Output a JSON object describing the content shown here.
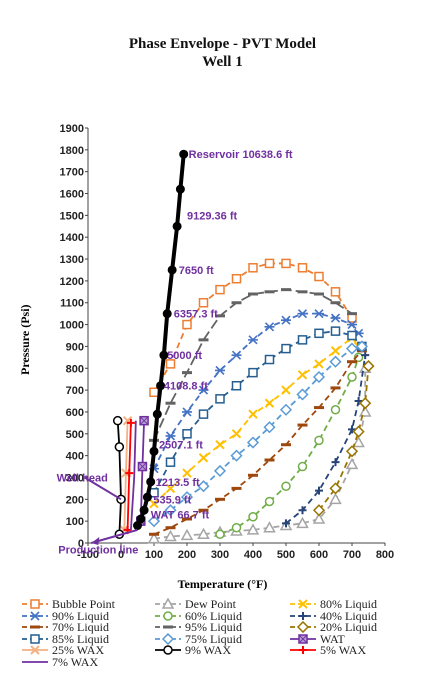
{
  "chart_data": {
    "type": "line",
    "title": "Phase Envelope - PVT Model",
    "subtitle": "Well 1",
    "xlabel": "Temperature (°F)",
    "ylabel": "Pressure (Psi)",
    "xlim": [
      -100,
      800
    ],
    "ylim": [
      0,
      1900
    ],
    "x_ticks": [
      "-100",
      "0",
      "100",
      "200",
      "300",
      "400",
      "500",
      "600",
      "700",
      "800"
    ],
    "y_ticks": [
      "0",
      "100",
      "200",
      "300",
      "400",
      "500",
      "600",
      "700",
      "800",
      "900",
      "1000",
      "1100",
      "1200",
      "1300",
      "1400",
      "1500",
      "1600",
      "1700",
      "1800",
      "1900"
    ],
    "grid": false,
    "legend_position": "bottom",
    "series": [
      {
        "name": "Bubble Point",
        "color": "#ED7D31",
        "marker": "square",
        "dash": "6,4",
        "points": [
          [
            100,
            690
          ],
          [
            150,
            820
          ],
          [
            200,
            1000
          ],
          [
            250,
            1100
          ],
          [
            300,
            1160
          ],
          [
            350,
            1210
          ],
          [
            400,
            1260
          ],
          [
            450,
            1280
          ],
          [
            500,
            1280
          ],
          [
            550,
            1260
          ],
          [
            600,
            1220
          ],
          [
            650,
            1150
          ],
          [
            700,
            1030
          ]
        ]
      },
      {
        "name": "Dew Point",
        "color": "#A5A5A5",
        "marker": "triangle",
        "dash": "6,4",
        "points": [
          [
            100,
            20
          ],
          [
            150,
            30
          ],
          [
            200,
            35
          ],
          [
            250,
            40
          ],
          [
            300,
            50
          ],
          [
            350,
            55
          ],
          [
            400,
            60
          ],
          [
            450,
            70
          ],
          [
            500,
            80
          ],
          [
            550,
            90
          ],
          [
            600,
            110
          ],
          [
            650,
            200
          ],
          [
            700,
            360
          ],
          [
            720,
            460
          ],
          [
            740,
            600
          ],
          [
            740,
            800
          ]
        ]
      },
      {
        "name": "80% Liquid",
        "color": "#FFC000",
        "marker": "x",
        "dash": "6,4",
        "points": [
          [
            100,
            180
          ],
          [
            150,
            250
          ],
          [
            200,
            320
          ],
          [
            250,
            390
          ],
          [
            300,
            450
          ],
          [
            350,
            500
          ],
          [
            400,
            590
          ],
          [
            450,
            640
          ],
          [
            500,
            700
          ],
          [
            550,
            770
          ],
          [
            600,
            820
          ],
          [
            650,
            880
          ],
          [
            700,
            940
          ],
          [
            720,
            900
          ]
        ]
      },
      {
        "name": "90% Liquid",
        "color": "#4472C4",
        "marker": "star",
        "dash": "6,4",
        "points": [
          [
            100,
            340
          ],
          [
            150,
            490
          ],
          [
            200,
            600
          ],
          [
            250,
            700
          ],
          [
            300,
            790
          ],
          [
            350,
            860
          ],
          [
            400,
            930
          ],
          [
            450,
            990
          ],
          [
            500,
            1020
          ],
          [
            550,
            1050
          ],
          [
            600,
            1050
          ],
          [
            650,
            1030
          ],
          [
            700,
            1000
          ],
          [
            720,
            960
          ]
        ]
      },
      {
        "name": "60% Liquid",
        "color": "#70AD47",
        "marker": "circle",
        "dash": "6,4",
        "points": [
          [
            300,
            40
          ],
          [
            350,
            70
          ],
          [
            400,
            120
          ],
          [
            450,
            190
          ],
          [
            500,
            260
          ],
          [
            550,
            350
          ],
          [
            600,
            470
          ],
          [
            650,
            610
          ],
          [
            700,
            760
          ],
          [
            720,
            850
          ]
        ]
      },
      {
        "name": "40% Liquid",
        "color": "#264478",
        "marker": "plus",
        "dash": "6,4",
        "points": [
          [
            500,
            90
          ],
          [
            550,
            150
          ],
          [
            600,
            240
          ],
          [
            650,
            370
          ],
          [
            700,
            520
          ],
          [
            720,
            650
          ],
          [
            740,
            860
          ]
        ]
      },
      {
        "name": "70% Liquid",
        "color": "#9E480E",
        "marker": "dash",
        "dash": "6,4",
        "points": [
          [
            100,
            40
          ],
          [
            150,
            70
          ],
          [
            200,
            110
          ],
          [
            250,
            150
          ],
          [
            300,
            200
          ],
          [
            350,
            250
          ],
          [
            400,
            310
          ],
          [
            450,
            380
          ],
          [
            500,
            450
          ],
          [
            550,
            540
          ],
          [
            600,
            620
          ],
          [
            650,
            710
          ],
          [
            700,
            830
          ],
          [
            730,
            880
          ]
        ]
      },
      {
        "name": "95% Liquid",
        "color": "#636363",
        "marker": "dash",
        "dash": "10,4",
        "points": [
          [
            100,
            470
          ],
          [
            150,
            640
          ],
          [
            200,
            780
          ],
          [
            250,
            930
          ],
          [
            300,
            1040
          ],
          [
            350,
            1100
          ],
          [
            400,
            1140
          ],
          [
            450,
            1150
          ],
          [
            500,
            1160
          ],
          [
            550,
            1150
          ],
          [
            600,
            1140
          ],
          [
            650,
            1100
          ],
          [
            700,
            1050
          ]
        ]
      },
      {
        "name": "20% Liquid",
        "color": "#997300",
        "marker": "diamond",
        "dash": "6,4",
        "points": [
          [
            600,
            150
          ],
          [
            650,
            250
          ],
          [
            700,
            420
          ],
          [
            720,
            510
          ],
          [
            740,
            640
          ],
          [
            750,
            810
          ]
        ]
      },
      {
        "name": "85% Liquid",
        "color": "#255E91",
        "marker": "square",
        "dash": "6,4",
        "points": [
          [
            100,
            230
          ],
          [
            150,
            370
          ],
          [
            200,
            500
          ],
          [
            250,
            590
          ],
          [
            300,
            660
          ],
          [
            350,
            720
          ],
          [
            400,
            780
          ],
          [
            450,
            840
          ],
          [
            500,
            890
          ],
          [
            550,
            930
          ],
          [
            600,
            960
          ],
          [
            650,
            970
          ],
          [
            700,
            950
          ],
          [
            730,
            900
          ]
        ]
      },
      {
        "name": "75%  Liquid",
        "color": "#5B9BD5",
        "marker": "diamond",
        "dash": "6,4",
        "points": [
          [
            100,
            100
          ],
          [
            150,
            150
          ],
          [
            200,
            210
          ],
          [
            250,
            260
          ],
          [
            300,
            330
          ],
          [
            350,
            400
          ],
          [
            400,
            460
          ],
          [
            450,
            530
          ],
          [
            500,
            610
          ],
          [
            550,
            680
          ],
          [
            600,
            760
          ],
          [
            650,
            830
          ],
          [
            700,
            890
          ],
          [
            730,
            900
          ]
        ]
      },
      {
        "name": "WAT",
        "color": "#7030A0",
        "marker": "xsquare",
        "dash": "",
        "points": [
          [
            60,
            100
          ],
          [
            65,
            350
          ],
          [
            70,
            560
          ]
        ]
      },
      {
        "name": "25% WAX",
        "color": "#F4B183",
        "marker": "x",
        "dash": "",
        "points": [
          [
            10,
            60
          ],
          [
            15,
            320
          ],
          [
            20,
            560
          ]
        ]
      },
      {
        "name": "9% WAX",
        "color": "#000000",
        "marker": "circle",
        "dash": "",
        "points": [
          [
            -5,
            40
          ],
          [
            0,
            200
          ],
          [
            -5,
            440
          ],
          [
            -10,
            560
          ]
        ]
      },
      {
        "name": "5% WAX",
        "color": "#FF0000",
        "marker": "plus",
        "dash": "",
        "points": [
          [
            20,
            60
          ],
          [
            25,
            320
          ],
          [
            30,
            550
          ]
        ]
      },
      {
        "name": "7% WAX",
        "color": "#7030A0",
        "marker": "none",
        "dash": "",
        "points": [
          [
            30,
            60
          ],
          [
            40,
            300
          ],
          [
            45,
            560
          ]
        ]
      },
      {
        "name": "Well Profile",
        "color": "#000000",
        "marker": "circleBlack",
        "dash": "",
        "width": 4,
        "legend": false,
        "points": [
          [
            50,
            80
          ],
          [
            60,
            110
          ],
          [
            70,
            150
          ],
          [
            80,
            210
          ],
          [
            90,
            280
          ],
          [
            100,
            420
          ],
          [
            110,
            590
          ],
          [
            120,
            720
          ],
          [
            130,
            860
          ],
          [
            140,
            1050
          ],
          [
            155,
            1250
          ],
          [
            170,
            1450
          ],
          [
            180,
            1620
          ],
          [
            190,
            1780
          ]
        ]
      }
    ],
    "annotations": [
      {
        "text": "Reservoir 10638.6 ft",
        "x": 205,
        "y": 1780,
        "color": "#7030A0"
      },
      {
        "text": "9129.36 ft",
        "x": 200,
        "y": 1500,
        "color": "#7030A0"
      },
      {
        "text": "7650 ft",
        "x": 175,
        "y": 1250,
        "color": "#7030A0"
      },
      {
        "text": "6357.3 ft",
        "x": 160,
        "y": 1050,
        "color": "#7030A0"
      },
      {
        "text": "5000 ft",
        "x": 140,
        "y": 860,
        "color": "#7030A0"
      },
      {
        "text": "4108.8 ft",
        "x": 130,
        "y": 720,
        "color": "#7030A0"
      },
      {
        "text": "2507.1 ft",
        "x": 115,
        "y": 450,
        "color": "#7030A0"
      },
      {
        "text": "1213.5 ft",
        "x": 105,
        "y": 280,
        "color": "#7030A0"
      },
      {
        "text": "535.9 ft",
        "x": 98,
        "y": 200,
        "color": "#7030A0"
      },
      {
        "text": "WAT 66.7 ft",
        "x": 90,
        "y": 130,
        "color": "#7030A0"
      },
      {
        "text": "Well head",
        "x": -195,
        "y": 300,
        "color": "#7030A0"
      },
      {
        "text": "Production line",
        "x": -190,
        "y": -30,
        "color": "#7030A0"
      }
    ]
  }
}
